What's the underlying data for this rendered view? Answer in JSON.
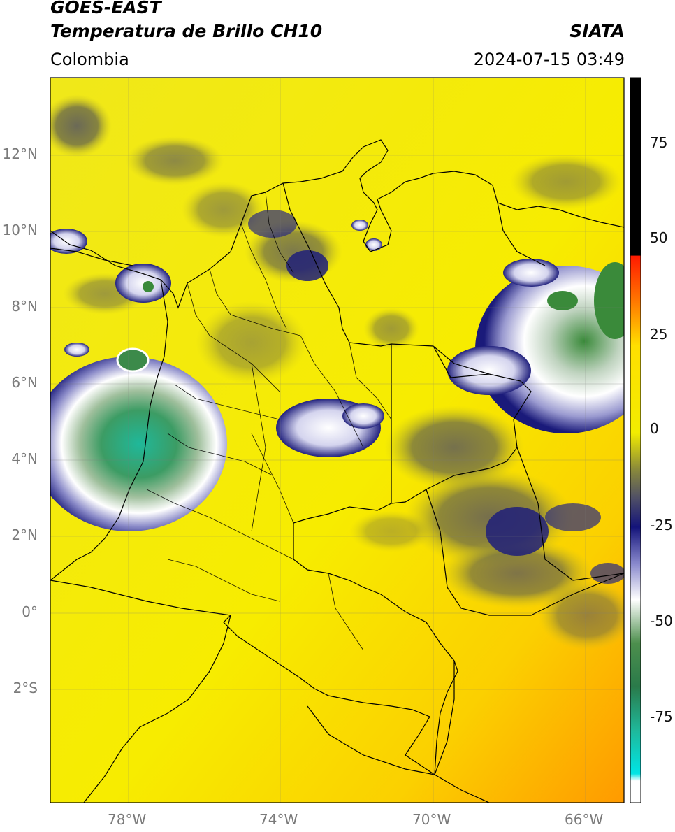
{
  "header": {
    "satellite": "GOES-EAST",
    "product": "Temperatura de Brillo CH10",
    "organization": "SIATA",
    "region": "Colombia",
    "timestamp": "2024-07-15 03:49"
  },
  "map": {
    "lon_range": [
      -80,
      -65
    ],
    "lat_range": [
      -5,
      14
    ],
    "lat_ticks": [
      {
        "value": 12,
        "label": "12°N"
      },
      {
        "value": 10,
        "label": "10°N"
      },
      {
        "value": 8,
        "label": "8°N"
      },
      {
        "value": 6,
        "label": "6°N"
      },
      {
        "value": 4,
        "label": "4°N"
      },
      {
        "value": 2,
        "label": "2°N"
      },
      {
        "value": 0,
        "label": "0°"
      },
      {
        "value": -2,
        "label": "2°S"
      }
    ],
    "lon_ticks": [
      {
        "value": -78,
        "label": "78°W"
      },
      {
        "value": -74,
        "label": "74°W"
      },
      {
        "value": -70,
        "label": "70°W"
      },
      {
        "value": -66,
        "label": "66°W"
      }
    ],
    "grid": true
  },
  "colorbar": {
    "range": [
      -95,
      90
    ],
    "ticks": [
      {
        "value": 75,
        "label": "75"
      },
      {
        "value": 50,
        "label": "50"
      },
      {
        "value": 25,
        "label": "25"
      },
      {
        "value": 0,
        "label": "0"
      },
      {
        "value": -25,
        "label": "-25"
      },
      {
        "value": -50,
        "label": "-50"
      },
      {
        "value": -75,
        "label": "-75"
      }
    ],
    "colors": {
      "black": "#000000",
      "red": "#ff1a00",
      "orange": "#ff9000",
      "yellow": "#fff200",
      "olive": "#7d7a30",
      "gray": "#5c5c66",
      "navy": "#14147a",
      "white": "#ffffff",
      "green": "#3a8a3a",
      "teal": "#1fb89a",
      "cyan": "#00e5e5"
    }
  }
}
